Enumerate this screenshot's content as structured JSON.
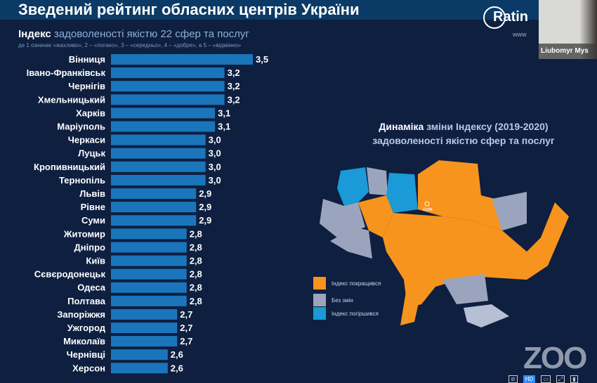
{
  "slide": {
    "title": "Зведений рейтинг обласних центрів України",
    "subtitle_bold": "Індекс",
    "subtitle_rest": " задоволеності якістю 22 сфер та послуг",
    "scale_note": "де 1 означає «жахливо», 2 – «погано», 3 – «середньо», 4 – «добре», а 5 – «відмінно»",
    "logo_text": "Ratin",
    "logo_url": "www"
  },
  "chart_data": {
    "type": "bar",
    "orientation": "horizontal",
    "title": "Індекс задоволеності якістю 22 сфер та послуг",
    "categories": [
      "Вінниця",
      "Івано-Франківськ",
      "Чернігів",
      "Хмельницький",
      "Харків",
      "Маріуполь",
      "Черкаси",
      "Луцьк",
      "Кропивницький",
      "Тернопіль",
      "Львів",
      "Рівне",
      "Суми",
      "Житомир",
      "Дніпро",
      "Київ",
      "Сєвєродонецьк",
      "Одеса",
      "Полтава",
      "Запоріжжя",
      "Ужгород",
      "Миколаїв",
      "Чернівці",
      "Херсон"
    ],
    "values": [
      3.5,
      3.2,
      3.2,
      3.2,
      3.1,
      3.1,
      3.0,
      3.0,
      3.0,
      3.0,
      2.9,
      2.9,
      2.9,
      2.8,
      2.8,
      2.8,
      2.8,
      2.8,
      2.8,
      2.7,
      2.7,
      2.7,
      2.6,
      2.6
    ],
    "value_labels": [
      "3,5",
      "3,2",
      "3,2",
      "3,2",
      "3,1",
      "3,1",
      "3,0",
      "3,0",
      "3,0",
      "3,0",
      "2,9",
      "2,9",
      "2,9",
      "2,8",
      "2,8",
      "2,8",
      "2,8",
      "2,8",
      "2,8",
      "2,7",
      "2,7",
      "2,7",
      "2,6",
      "2,6"
    ],
    "xlim": [
      2.0,
      3.5
    ],
    "bar_color": "#1b75bb"
  },
  "map": {
    "title_accent": "Динаміка",
    "title_rest": " зміни Індексу (2019-2020)",
    "title_line2": "задоволеності якістю сфер та послуг",
    "legend": [
      {
        "label": "Індекс покращився",
        "color": "#f7941d"
      },
      {
        "label": "Без змін",
        "color": "#9aa5bd"
      },
      {
        "label": "Індекс погіршився",
        "color": "#1a9ad6"
      }
    ],
    "city_label": "Київ"
  },
  "zoom": {
    "participant_name": "Liubomyr Mys",
    "watermark": "ZOO",
    "hd_label": "HD"
  }
}
